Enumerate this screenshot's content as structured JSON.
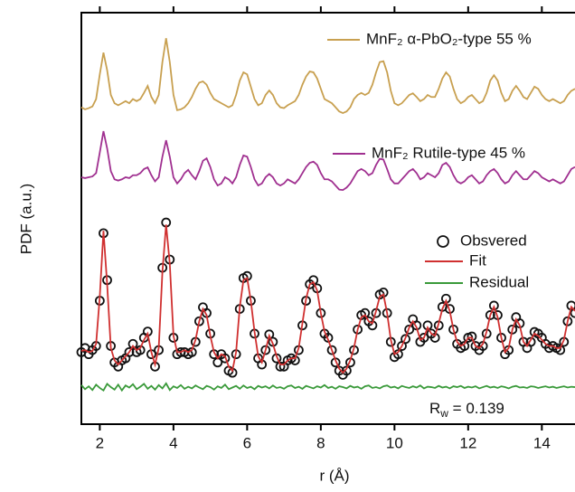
{
  "chart_data": {
    "type": "line",
    "x_label": "r (Å)",
    "y_label": "PDF (a.u.)",
    "xlim": [
      1.5,
      14.9
    ],
    "xticks": [
      2,
      4,
      6,
      8,
      10,
      12,
      14
    ],
    "ylim": [
      0,
      100
    ],
    "annotation": {
      "main": "R",
      "sub": "w",
      "rest": " = 0.139"
    },
    "x": [
      1.5,
      1.6,
      1.7,
      1.8,
      1.9,
      2.0,
      2.1,
      2.2,
      2.3,
      2.4,
      2.5,
      2.6,
      2.7,
      2.8,
      2.9,
      3.0,
      3.1,
      3.2,
      3.3,
      3.4,
      3.5,
      3.6,
      3.7,
      3.8,
      3.9,
      4.0,
      4.1,
      4.2,
      4.3,
      4.4,
      4.5,
      4.6,
      4.7,
      4.8,
      4.9,
      5.0,
      5.1,
      5.2,
      5.3,
      5.4,
      5.5,
      5.6,
      5.7,
      5.8,
      5.9,
      6.0,
      6.1,
      6.2,
      6.3,
      6.4,
      6.5,
      6.6,
      6.7,
      6.8,
      6.9,
      7.0,
      7.1,
      7.2,
      7.3,
      7.4,
      7.5,
      7.6,
      7.7,
      7.8,
      7.9,
      8.0,
      8.1,
      8.2,
      8.3,
      8.4,
      8.5,
      8.6,
      8.7,
      8.8,
      8.9,
      9.0,
      9.1,
      9.2,
      9.3,
      9.4,
      9.5,
      9.6,
      9.7,
      9.8,
      9.9,
      10.0,
      10.1,
      10.2,
      10.3,
      10.4,
      10.5,
      10.6,
      10.7,
      10.8,
      10.9,
      11.0,
      11.1,
      11.2,
      11.3,
      11.4,
      11.5,
      11.6,
      11.7,
      11.8,
      11.9,
      12.0,
      12.1,
      12.2,
      12.3,
      12.4,
      12.5,
      12.6,
      12.7,
      12.8,
      12.9,
      13.0,
      13.1,
      13.2,
      13.3,
      13.4,
      13.5,
      13.6,
      13.7,
      13.8,
      13.9,
      14.0,
      14.1,
      14.2,
      14.3,
      14.4,
      14.5,
      14.6,
      14.7,
      14.8,
      14.9
    ],
    "series": [
      {
        "name": "Obsvered",
        "style": "markers",
        "color": "#111111",
        "values": [
          17.5,
          18.5,
          17,
          18,
          19,
          30,
          46.4,
          35,
          19,
          15,
          14,
          15.5,
          16,
          17.5,
          19.5,
          17.5,
          18,
          21,
          22.5,
          17,
          14,
          18,
          38,
          49,
          40,
          21,
          17,
          17.5,
          17.5,
          17,
          17.5,
          20,
          25,
          28.4,
          27,
          22,
          17,
          15,
          17,
          16,
          13,
          12.5,
          17,
          28,
          35.5,
          36,
          30,
          22,
          16,
          14.5,
          18,
          21.8,
          20,
          16,
          14,
          14,
          15.5,
          16,
          15.5,
          18,
          24,
          30,
          34,
          35,
          33,
          27,
          22,
          21,
          18,
          15,
          13,
          12,
          13,
          15,
          18,
          23,
          26.5,
          27,
          25,
          24,
          27,
          31.5,
          32,
          27,
          20,
          16.3,
          17,
          19,
          20.7,
          23,
          25.5,
          24,
          20,
          21,
          24,
          22,
          21,
          24,
          28.5,
          30.5,
          28,
          23,
          19.5,
          18.5,
          19,
          21,
          21.3,
          19,
          18,
          19,
          22,
          26.5,
          28.8,
          26.5,
          21,
          17,
          18,
          23,
          26,
          24.5,
          20,
          18.5,
          20,
          22.4,
          22,
          21,
          19.5,
          18.5,
          19,
          18.5,
          18,
          20,
          25,
          28.8,
          27
        ]
      },
      {
        "name": "Fit",
        "style": "line",
        "color": "#d03030",
        "values": [
          17.8,
          18,
          17.5,
          17.8,
          19.5,
          31,
          47,
          34,
          18.5,
          15.5,
          14.5,
          15.5,
          16.5,
          17.5,
          19,
          18,
          18.5,
          20.5,
          22,
          17.5,
          14.5,
          18.5,
          37,
          48.5,
          39,
          21.5,
          17.5,
          17.5,
          18,
          17.5,
          18,
          20.5,
          25,
          28,
          26.5,
          21.5,
          17.5,
          16,
          17,
          16.5,
          14,
          13,
          17.5,
          28.5,
          35,
          35.5,
          30,
          22.5,
          16.5,
          15,
          18,
          21.5,
          19.5,
          16.5,
          14.5,
          14.5,
          15.5,
          16,
          16,
          18.5,
          24.5,
          30.5,
          34,
          34.5,
          32.5,
          27,
          22.5,
          20.5,
          18,
          15.5,
          13.5,
          12.5,
          13.5,
          15.5,
          18.5,
          23,
          26,
          26.5,
          25,
          24.5,
          27.5,
          31,
          31.5,
          27,
          20.5,
          17,
          17.5,
          19,
          21,
          23.5,
          25,
          23.5,
          20.5,
          21,
          23.5,
          22,
          21.5,
          24.5,
          28,
          30,
          27.5,
          23,
          20,
          19,
          19.5,
          21,
          21,
          19,
          18.5,
          19.5,
          22.5,
          26.5,
          28.5,
          26,
          21,
          17.5,
          18.5,
          23,
          25.5,
          24,
          20,
          19,
          20.5,
          22,
          21.5,
          20.5,
          19.5,
          19,
          19,
          18.5,
          18.5,
          20.5,
          25,
          28.5,
          27.5
        ]
      },
      {
        "name": "Residual",
        "style": "line",
        "color": "#3a9a3a",
        "values": [
          9.5,
          8.5,
          9.2,
          8.3,
          9.6,
          8.8,
          8.2,
          9.8,
          9,
          8.4,
          9.6,
          8.2,
          9.4,
          8.9,
          9.7,
          8.5,
          9.1,
          9.8,
          8.6,
          9.3,
          8.4,
          9.5,
          8.7,
          9.9,
          8.3,
          9.2,
          8.8,
          9.5,
          8.6,
          9.1,
          8.7,
          9.4,
          8.9,
          8.5,
          9.3,
          9,
          8.4,
          9.2,
          8.8,
          9.6,
          8.5,
          8.9,
          9.3,
          8.6,
          9.4,
          8.8,
          9.1,
          8.5,
          9.3,
          8.9,
          9.2,
          8.7,
          9.4,
          8.8,
          9,
          8.6,
          9.2,
          9.4,
          8.8,
          9.1,
          8.6,
          9.3,
          9,
          8.7,
          9.2,
          8.9,
          9.5,
          8.8,
          9.1,
          8.6,
          9.2,
          9,
          8.7,
          9.3,
          8.9,
          9.1,
          8.6,
          9.2,
          9.4,
          8.8,
          9,
          8.7,
          9.2,
          9.4,
          8.9,
          9.1,
          8.7,
          9.3,
          9,
          8.8,
          9.2,
          8.9,
          9.4,
          8.7,
          9.1,
          9,
          8.8,
          9.3,
          8.9,
          9.1,
          8.7,
          9.2,
          9,
          9.3,
          8.8,
          9.1,
          8.9,
          9.2,
          8.7,
          9,
          9.3,
          8.9,
          9.1,
          8.8,
          9.2,
          9,
          8.7,
          9.1,
          9.3,
          8.9,
          9,
          8.8,
          9.2,
          9.1,
          8.8,
          9,
          9.2,
          8.9,
          9.1,
          8.8,
          9,
          9.2,
          8.9,
          9.1,
          9
        ]
      },
      {
        "name": "MnF₂ α-PbO₂-type 55 %",
        "style": "line",
        "color": "#c8a050",
        "values": [
          77,
          76.5,
          76.8,
          77.2,
          79,
          85,
          90.3,
          86,
          80,
          78,
          77.5,
          78,
          78.5,
          78,
          79,
          78.5,
          79,
          80.5,
          82.2,
          79.5,
          78,
          80,
          88,
          93.8,
          88,
          80,
          76.3,
          76.5,
          77,
          78,
          79.5,
          81.5,
          83,
          83.3,
          82.5,
          80.5,
          79,
          78.5,
          78,
          77.5,
          77,
          77.5,
          80,
          83.5,
          85.5,
          85,
          82,
          79,
          77.5,
          78,
          80,
          81.1,
          80,
          78,
          77,
          76.8,
          77.5,
          78,
          78.5,
          80,
          82.5,
          84.5,
          85.7,
          85.5,
          84,
          81.5,
          79,
          78.5,
          78,
          77,
          76,
          75.6,
          76,
          77,
          79,
          80,
          80.5,
          80,
          80.5,
          82.5,
          85.5,
          88,
          88.2,
          85.5,
          81,
          78,
          77.5,
          78,
          79,
          80,
          80.4,
          79.5,
          78.5,
          79,
          80,
          79.5,
          79.5,
          81.5,
          84,
          85.5,
          84.5,
          81.5,
          79,
          78,
          78.5,
          79.5,
          80,
          79,
          78,
          78.5,
          80.5,
          83.5,
          84.8,
          83.5,
          80.5,
          78.5,
          79,
          81,
          82.2,
          81,
          79.5,
          79,
          80.5,
          82,
          81.5,
          80,
          79,
          78.5,
          79,
          78.5,
          78,
          78.5,
          80,
          81,
          81.5
        ]
      },
      {
        "name": "MnF₂ Rutile-type 45 %",
        "style": "line",
        "color": "#a03090",
        "values": [
          60,
          59.8,
          60,
          60.2,
          61,
          66,
          71.2,
          67,
          61.5,
          59.5,
          59.2,
          59.5,
          60,
          59.8,
          60.5,
          60.5,
          61,
          62,
          62.4,
          60.5,
          59,
          60,
          65,
          69,
          65,
          60,
          58.5,
          59.5,
          61,
          61.8,
          60.5,
          59.5,
          61.5,
          64,
          64.6,
          62.5,
          59.5,
          58,
          58.5,
          60,
          59.5,
          58.5,
          60,
          63,
          65.3,
          65,
          62.5,
          59.5,
          58,
          58.5,
          60,
          60.8,
          60,
          58.5,
          58,
          58.5,
          59.5,
          59,
          58.5,
          59.5,
          61,
          62.5,
          63.5,
          63.8,
          63,
          61,
          59.5,
          59.5,
          59,
          58,
          57,
          56.9,
          57.5,
          58.5,
          60,
          61.5,
          62,
          61.5,
          60.5,
          61,
          63,
          64.5,
          64.3,
          62,
          59.5,
          58.5,
          58.5,
          59.5,
          60.5,
          61.5,
          62,
          61,
          59.5,
          60,
          61,
          60.5,
          60,
          61,
          63,
          63.5,
          62.5,
          60.5,
          59,
          58.5,
          59,
          60,
          60.5,
          59.5,
          58.5,
          59,
          60.5,
          61.5,
          62,
          61,
          59.5,
          58.5,
          59,
          60.5,
          61.5,
          60.5,
          59.5,
          59.5,
          60.5,
          61.5,
          61,
          60,
          59.5,
          59,
          59.5,
          59,
          58.5,
          59,
          60.5,
          62,
          62.5
        ]
      }
    ]
  }
}
